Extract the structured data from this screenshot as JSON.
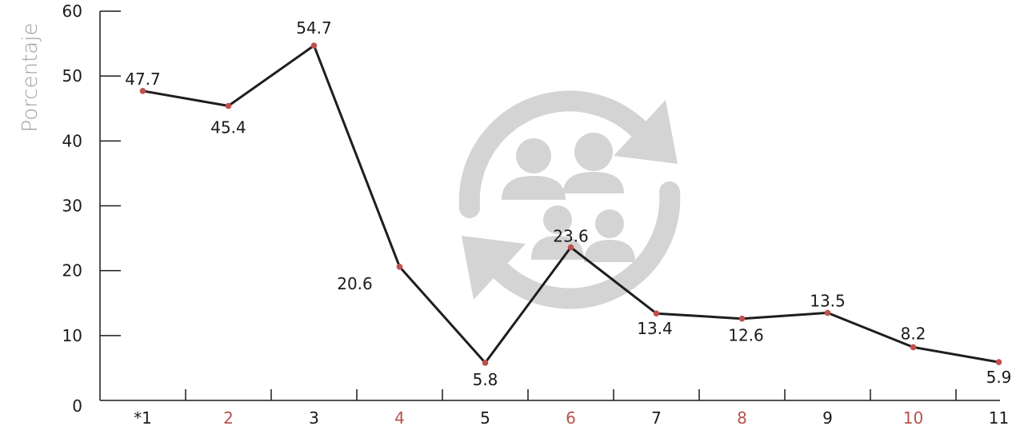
{
  "chart_data": {
    "type": "line",
    "title": "",
    "xlabel": "",
    "ylabel": "Porcentaje",
    "ylim": [
      0,
      60
    ],
    "yticks": [
      0,
      10,
      20,
      30,
      40,
      50,
      60
    ],
    "categories": [
      "*1",
      "2",
      "3",
      "4",
      "5",
      "6",
      "7",
      "8",
      "9",
      "10",
      "11"
    ],
    "series": [
      {
        "values": [
          47.7,
          45.4,
          54.7,
          20.6,
          5.8,
          23.6,
          13.4,
          12.6,
          13.5,
          8.2,
          5.9
        ]
      }
    ],
    "data_labels": [
      "47.7",
      "45.4",
      "54.7",
      "20.6",
      "5.8",
      "23.6",
      "13.4",
      "12.6",
      "13.5",
      "8.2",
      "5.9"
    ],
    "grid": false,
    "colors": {
      "line": "#1e1e1e",
      "marker": "#c0504d",
      "tick_label_odd": "#1a1a1a",
      "tick_label_even": "#b5524c",
      "ylabel": "#a0a0a0",
      "watermark": "#d4d4d4"
    }
  },
  "watermark": {
    "icon": "people-exchange-icon"
  }
}
